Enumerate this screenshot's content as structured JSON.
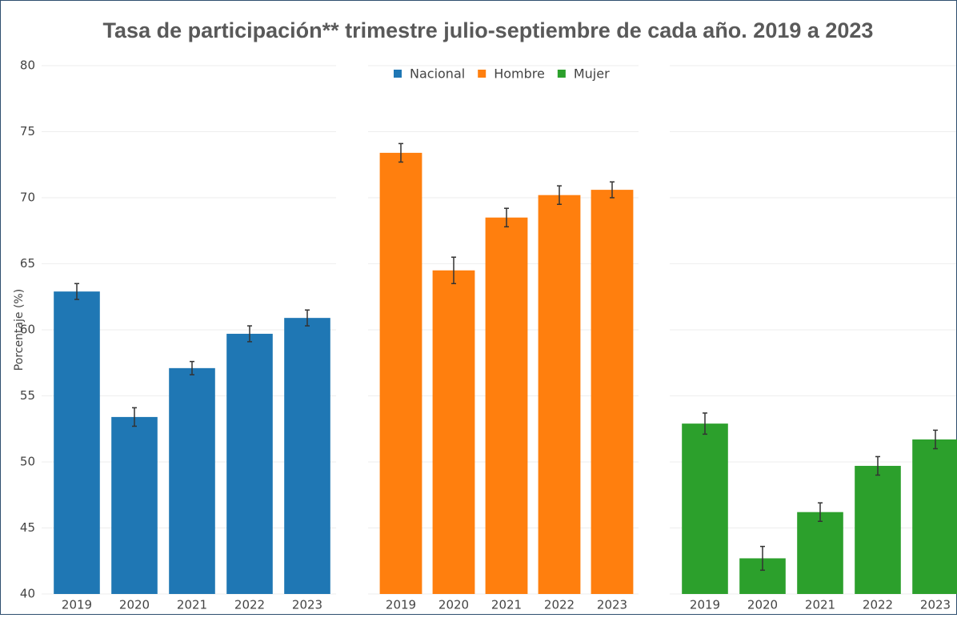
{
  "chart_data": {
    "type": "bar",
    "title": "Tasa de participación** trimestre julio-septiembre de cada año. 2019 a 2023",
    "ylabel": "Porcentaje (%)",
    "categories": [
      "2019",
      "2020",
      "2021",
      "2022",
      "2023"
    ],
    "series": [
      {
        "name": "Nacional",
        "color": "#1f77b4",
        "values": [
          62.9,
          53.4,
          57.1,
          59.7,
          60.9
        ],
        "errors": [
          0.6,
          0.7,
          0.5,
          0.6,
          0.6
        ]
      },
      {
        "name": "Hombre",
        "color": "#ff7f0e",
        "values": [
          73.4,
          64.5,
          68.5,
          70.2,
          70.6
        ],
        "errors": [
          0.7,
          1.0,
          0.7,
          0.7,
          0.6
        ]
      },
      {
        "name": "Mujer",
        "color": "#2ca02c",
        "values": [
          52.9,
          42.7,
          46.2,
          49.7,
          51.7
        ],
        "errors": [
          0.8,
          0.9,
          0.7,
          0.7,
          0.7
        ]
      }
    ],
    "ylim": [
      40,
      80
    ],
    "yticks": [
      40,
      45,
      50,
      55,
      60,
      65,
      70,
      75,
      80
    ],
    "grid": true,
    "legend": "top"
  }
}
